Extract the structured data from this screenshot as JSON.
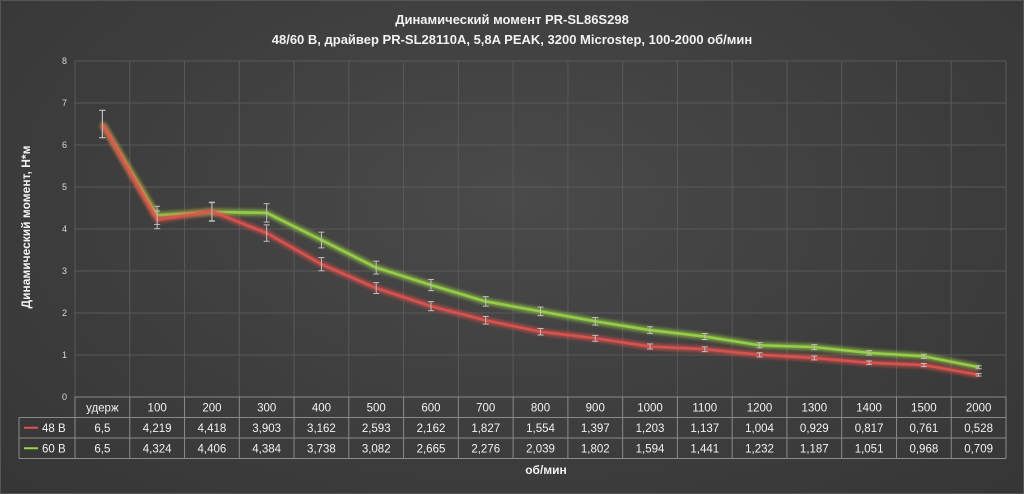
{
  "chart_data": {
    "type": "line",
    "title": "Динамический момент PR-SL86S298",
    "subtitle": "48/60 В, драйвер PR-SL28110A, 5,8A PEAK, 3200 Microstep, 100-2000 об/мин",
    "xlabel": "об/мин",
    "ylabel": "Динамический момент, Н*м",
    "ylim": [
      0,
      8
    ],
    "yticks": [
      "0",
      "1",
      "2",
      "3",
      "4",
      "5",
      "6",
      "7",
      "8"
    ],
    "grid": true,
    "error_bars": true,
    "categories": [
      "удерж",
      "100",
      "200",
      "300",
      "400",
      "500",
      "600",
      "700",
      "800",
      "900",
      "1000",
      "1100",
      "1200",
      "1300",
      "1400",
      "1500",
      "2000"
    ],
    "series": [
      {
        "name": "48 В",
        "color": "#e0524f",
        "values": [
          6.5,
          4.219,
          4.418,
          3.903,
          3.162,
          2.593,
          2.162,
          1.827,
          1.554,
          1.397,
          1.203,
          1.137,
          1.004,
          0.929,
          0.817,
          0.761,
          0.528
        ],
        "labels": [
          "6,5",
          "4,219",
          "4,418",
          "3,903",
          "3,162",
          "2,593",
          "2,162",
          "1,827",
          "1,554",
          "1,397",
          "1,203",
          "1,137",
          "1,004",
          "0,929",
          "0,817",
          "0,761",
          "0,528"
        ]
      },
      {
        "name": "60 В",
        "color": "#9bd44a",
        "values": [
          6.5,
          4.324,
          4.406,
          4.384,
          3.738,
          3.082,
          2.665,
          2.276,
          2.039,
          1.802,
          1.594,
          1.441,
          1.232,
          1.187,
          1.051,
          0.968,
          0.709
        ],
        "labels": [
          "6,5",
          "4,324",
          "4,406",
          "4,384",
          "3,738",
          "3,082",
          "2,665",
          "2,276",
          "2,039",
          "1,802",
          "1,594",
          "1,441",
          "1,232",
          "1,187",
          "1,051",
          "0,968",
          "0,709"
        ]
      }
    ]
  }
}
